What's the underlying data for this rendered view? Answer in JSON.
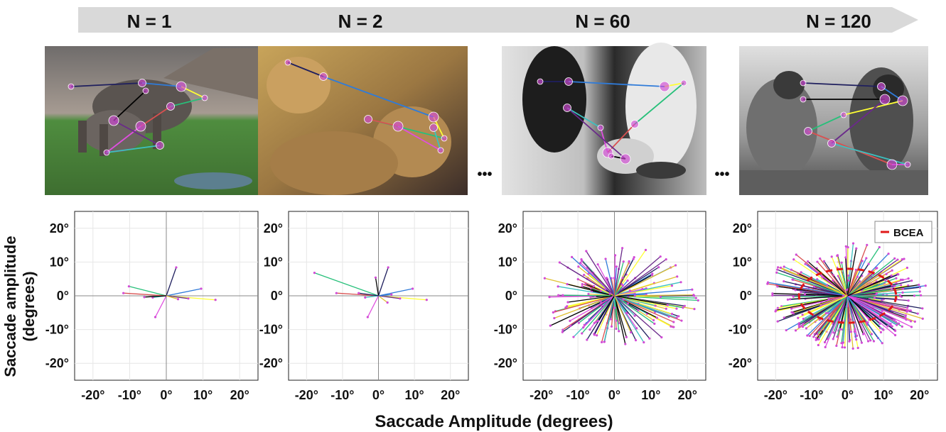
{
  "header": {
    "arrow_color": "#d9d9d9",
    "labels": [
      "N = 1",
      "N = 2",
      "N = 60",
      "N = 120"
    ],
    "ellipsis": "•••"
  },
  "axes_text": {
    "ylabel_line1": "Saccade amplitude",
    "ylabel_line2": "(degrees)",
    "xlabel": "Saccade Amplitude (degrees)"
  },
  "photos": [
    {
      "subject": "elephants at a watering hole",
      "palette": [
        "#8c8a8a",
        "#4f8d3f",
        "#6b5b4a"
      ]
    },
    {
      "subject": "leopard with cub",
      "palette": [
        "#5a3f3a",
        "#c79a4d",
        "#2d2422"
      ]
    },
    {
      "subject": "emperor penguin legs (greyscale)",
      "palette": [
        "#d5d5d5",
        "#2b2b2b",
        "#9c9c9c"
      ]
    },
    {
      "subject": "penguin chicks (greyscale)",
      "palette": [
        "#cfcfcf",
        "#3a3a3a",
        "#808080"
      ]
    }
  ],
  "fixation_color": "#d24bd6",
  "saccade_colors": [
    "#1f1f5e",
    "#2f7bd9",
    "#ffff33",
    "#27c07a",
    "#d95050",
    "#e04ee0",
    "#3cc0c0",
    "#6a2a8a",
    "#000000",
    "#e0c030"
  ],
  "chart_data": [
    {
      "type": "scatter",
      "title": "N = 1",
      "xlim": [
        -25,
        25
      ],
      "ylim": [
        -25,
        25
      ],
      "xticks": [
        "-20°",
        "-10°",
        "0°",
        "10°",
        "20°"
      ],
      "yticks": [
        "20°",
        "10°",
        "0°",
        "-10°",
        "-20°"
      ],
      "grid": true,
      "saccades": [
        [
          2.7,
          8.4
        ],
        [
          9.5,
          2.1
        ],
        [
          13.4,
          -1.2
        ],
        [
          -10.2,
          2.8
        ],
        [
          -11.7,
          0.8
        ],
        [
          -3.0,
          -6.3
        ],
        [
          -3.7,
          -0.5
        ],
        [
          6.0,
          -0.8
        ],
        [
          -6.0,
          -0.4
        ],
        [
          3.2,
          -1.0
        ]
      ]
    },
    {
      "type": "scatter",
      "title": "N = 2",
      "xlim": [
        -25,
        25
      ],
      "ylim": [
        -25,
        25
      ],
      "xticks": [
        "-20°",
        "-10°",
        "0°",
        "10°",
        "20°"
      ],
      "yticks": [
        "20°",
        "10°",
        "0°",
        "-10°",
        "-20°"
      ],
      "grid": true,
      "saccades": [
        [
          2.7,
          8.4
        ],
        [
          9.5,
          2.1
        ],
        [
          13.4,
          -1.2
        ],
        [
          -17.8,
          6.8
        ],
        [
          -11.7,
          0.8
        ],
        [
          -3.0,
          -6.3
        ],
        [
          -3.7,
          -0.5
        ],
        [
          6.0,
          -0.8
        ],
        [
          -0.8,
          5.4
        ],
        [
          2.5,
          -2.0
        ],
        [
          -5.5,
          0.8
        ],
        [
          3.6,
          0.4
        ]
      ]
    },
    {
      "type": "scatter",
      "title": "N = 60",
      "xlim": [
        -25,
        25
      ],
      "ylim": [
        -25,
        25
      ],
      "xticks": [
        "-20°",
        "-10°",
        "0°",
        "10°",
        "20°"
      ],
      "yticks": [
        "20°",
        "10°",
        "0°",
        "-10°",
        "-20°"
      ],
      "grid": true,
      "saccade_count": 60,
      "max_extent": [
        22,
        15
      ]
    },
    {
      "type": "scatter",
      "title": "N = 120",
      "xlim": [
        -25,
        25
      ],
      "ylim": [
        -25,
        25
      ],
      "xticks": [
        "-20°",
        "-10°",
        "0°",
        "10°",
        "20°"
      ],
      "yticks": [
        "20°",
        "10°",
        "0°",
        "-10°",
        "-20°"
      ],
      "grid": true,
      "saccade_count": 120,
      "max_extent": [
        22,
        16
      ],
      "legend": {
        "label": "BCEA",
        "position": "top-right",
        "color": "#e01818"
      },
      "bcea": {
        "rx": 13.5,
        "ry": 8.0
      }
    }
  ]
}
